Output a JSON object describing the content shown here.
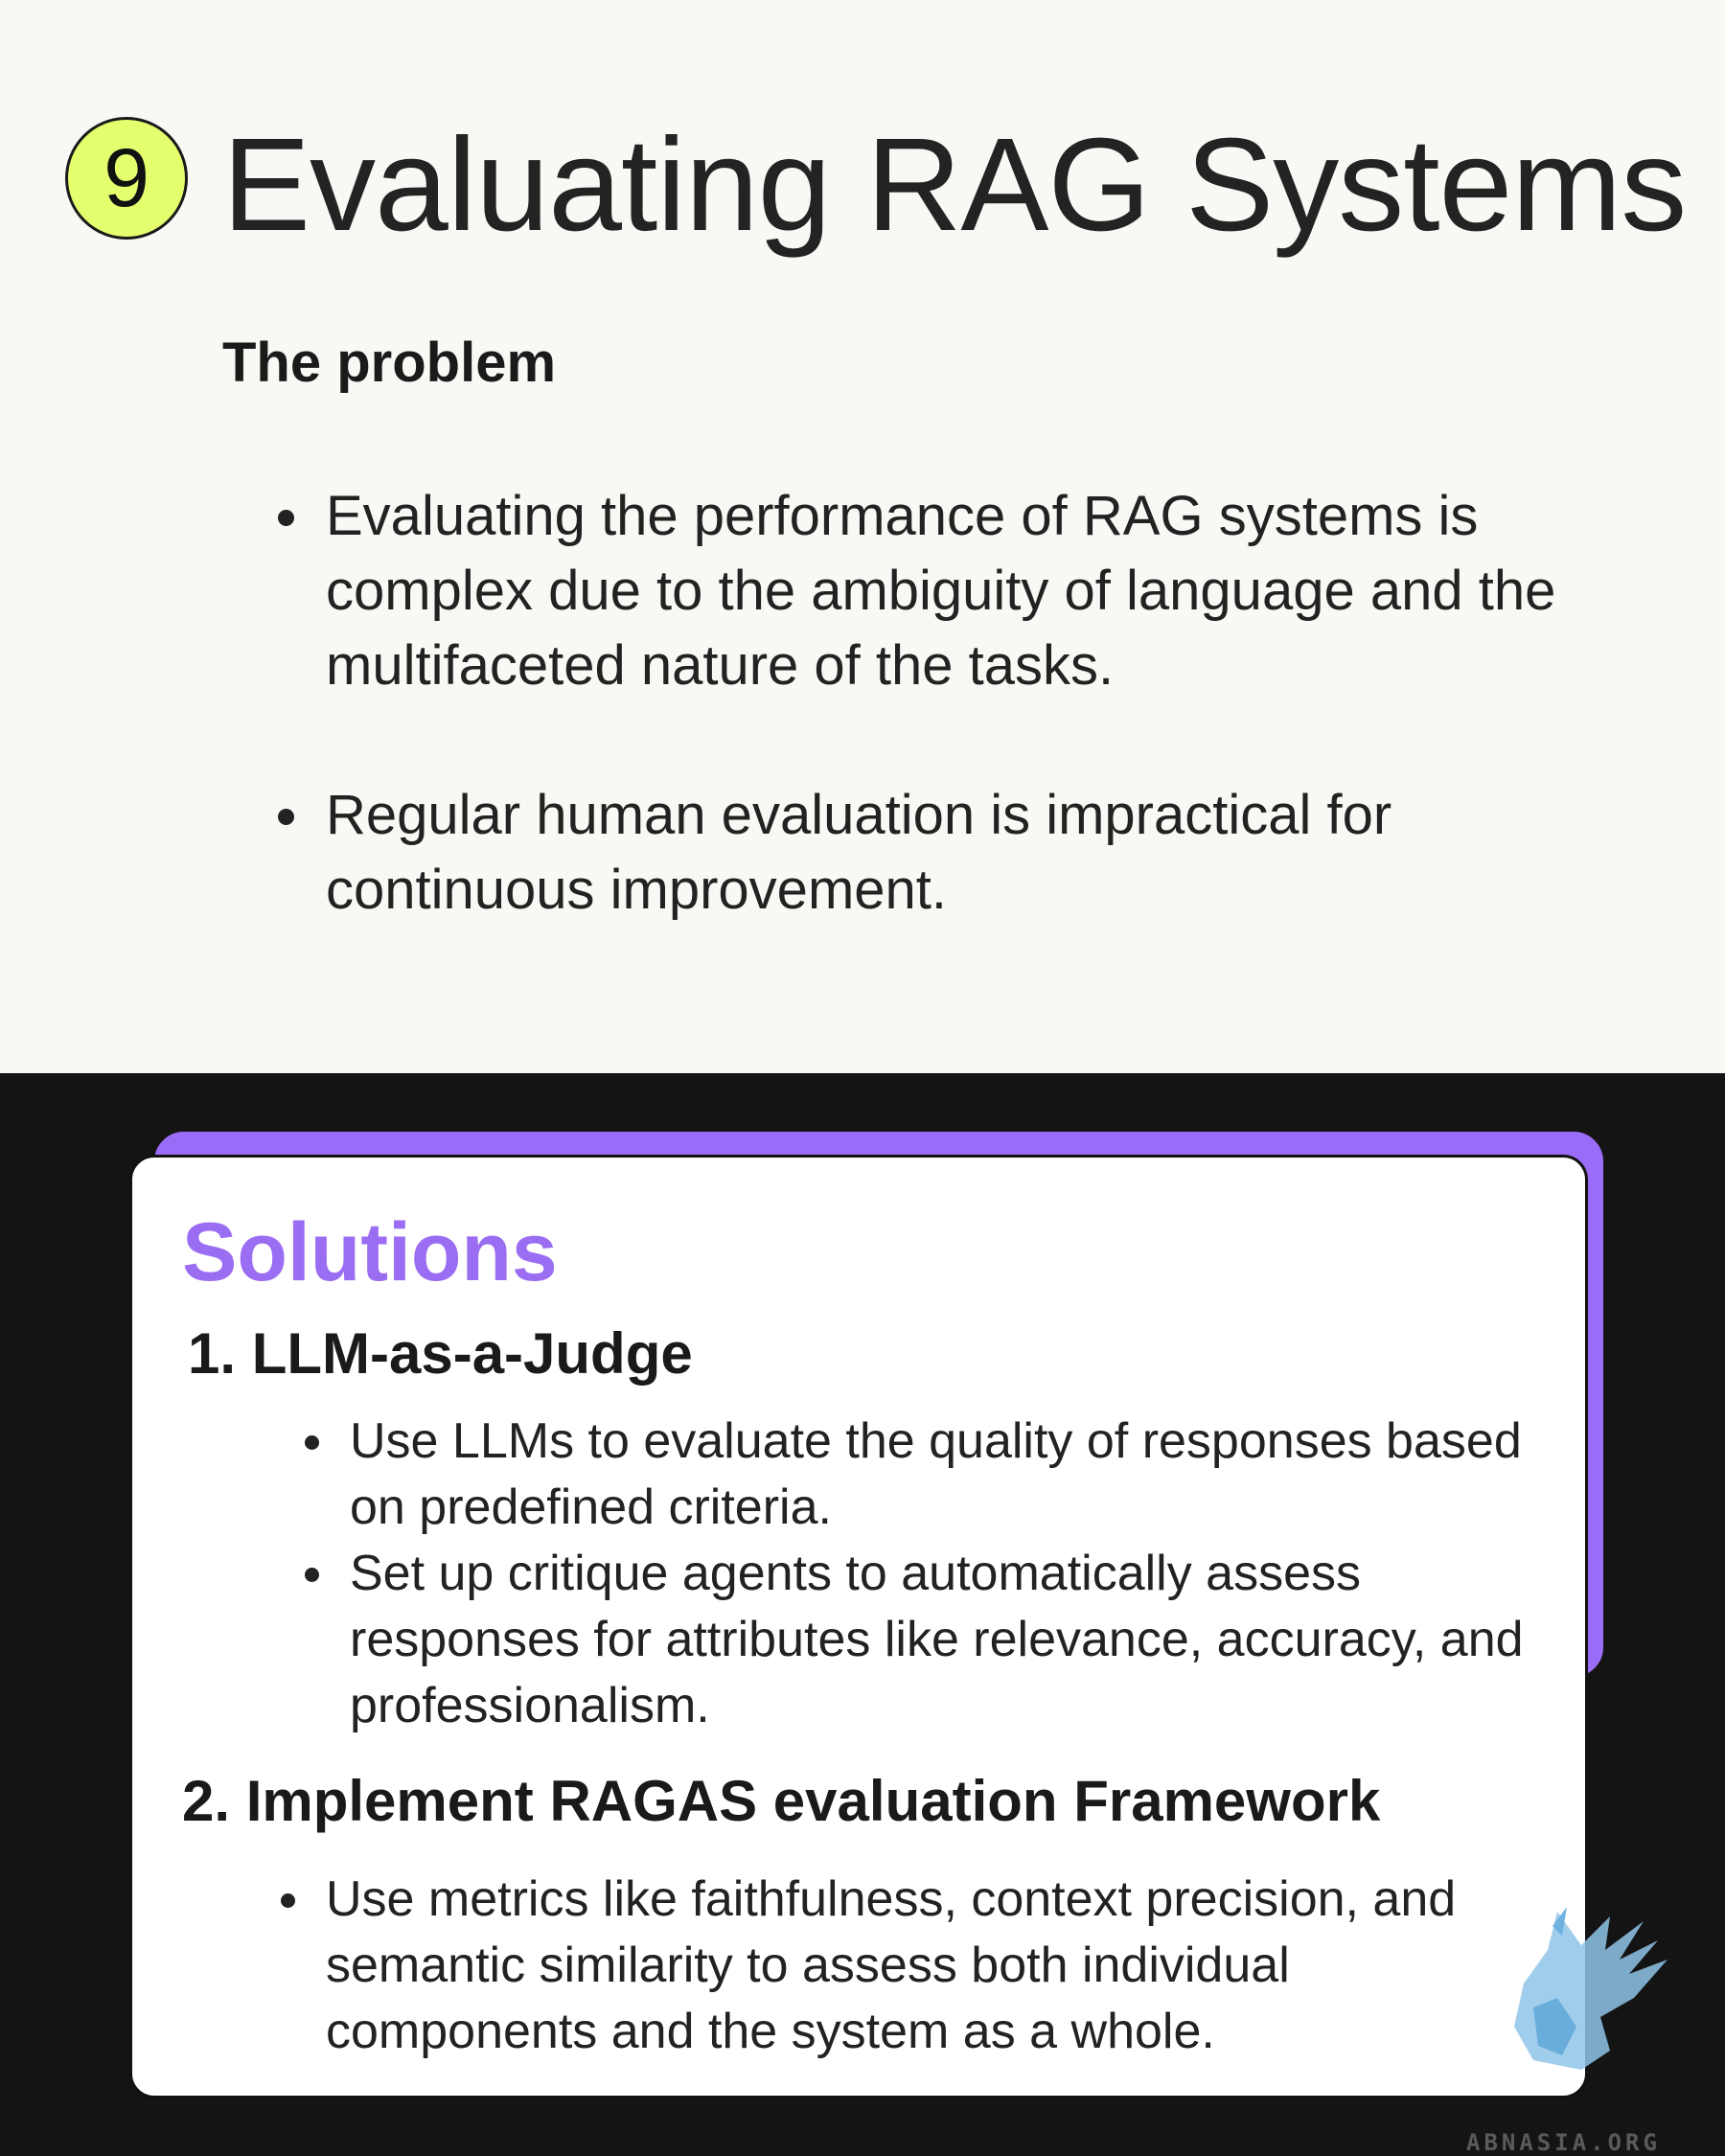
{
  "header": {
    "number": "9",
    "title": "Evaluating RAG Systems"
  },
  "problem": {
    "heading": "The problem",
    "bullets": [
      "Evaluating the performance of RAG systems is complex due to the ambiguity of language and the multifaceted nature of the tasks.",
      "Regular human evaluation is impractical for continuous improvement."
    ]
  },
  "solutions": {
    "title": "Solutions",
    "items": [
      {
        "heading": "1. LLM-as-a-Judge",
        "bullets": [
          "Use LLMs to evaluate the quality of responses based on predefined criteria.",
          "Set up critique agents to automatically assess responses for attributes like relevance, accuracy, and professionalism."
        ]
      },
      {
        "heading": "2. Implement RAGAS evaluation Framework",
        "bullets": [
          "Use metrics like faithfulness, context precision, and semantic similarity to assess both individual components and the system as a whole."
        ]
      }
    ]
  },
  "branding": {
    "watermark": "ABNASIA.ORG",
    "logo_icon": "griffin-logo-icon"
  },
  "colors": {
    "badge": "#e4ff6e",
    "accent": "#9b6cf7",
    "dark_background": "#141414",
    "light_background": "#f9f8f4"
  }
}
